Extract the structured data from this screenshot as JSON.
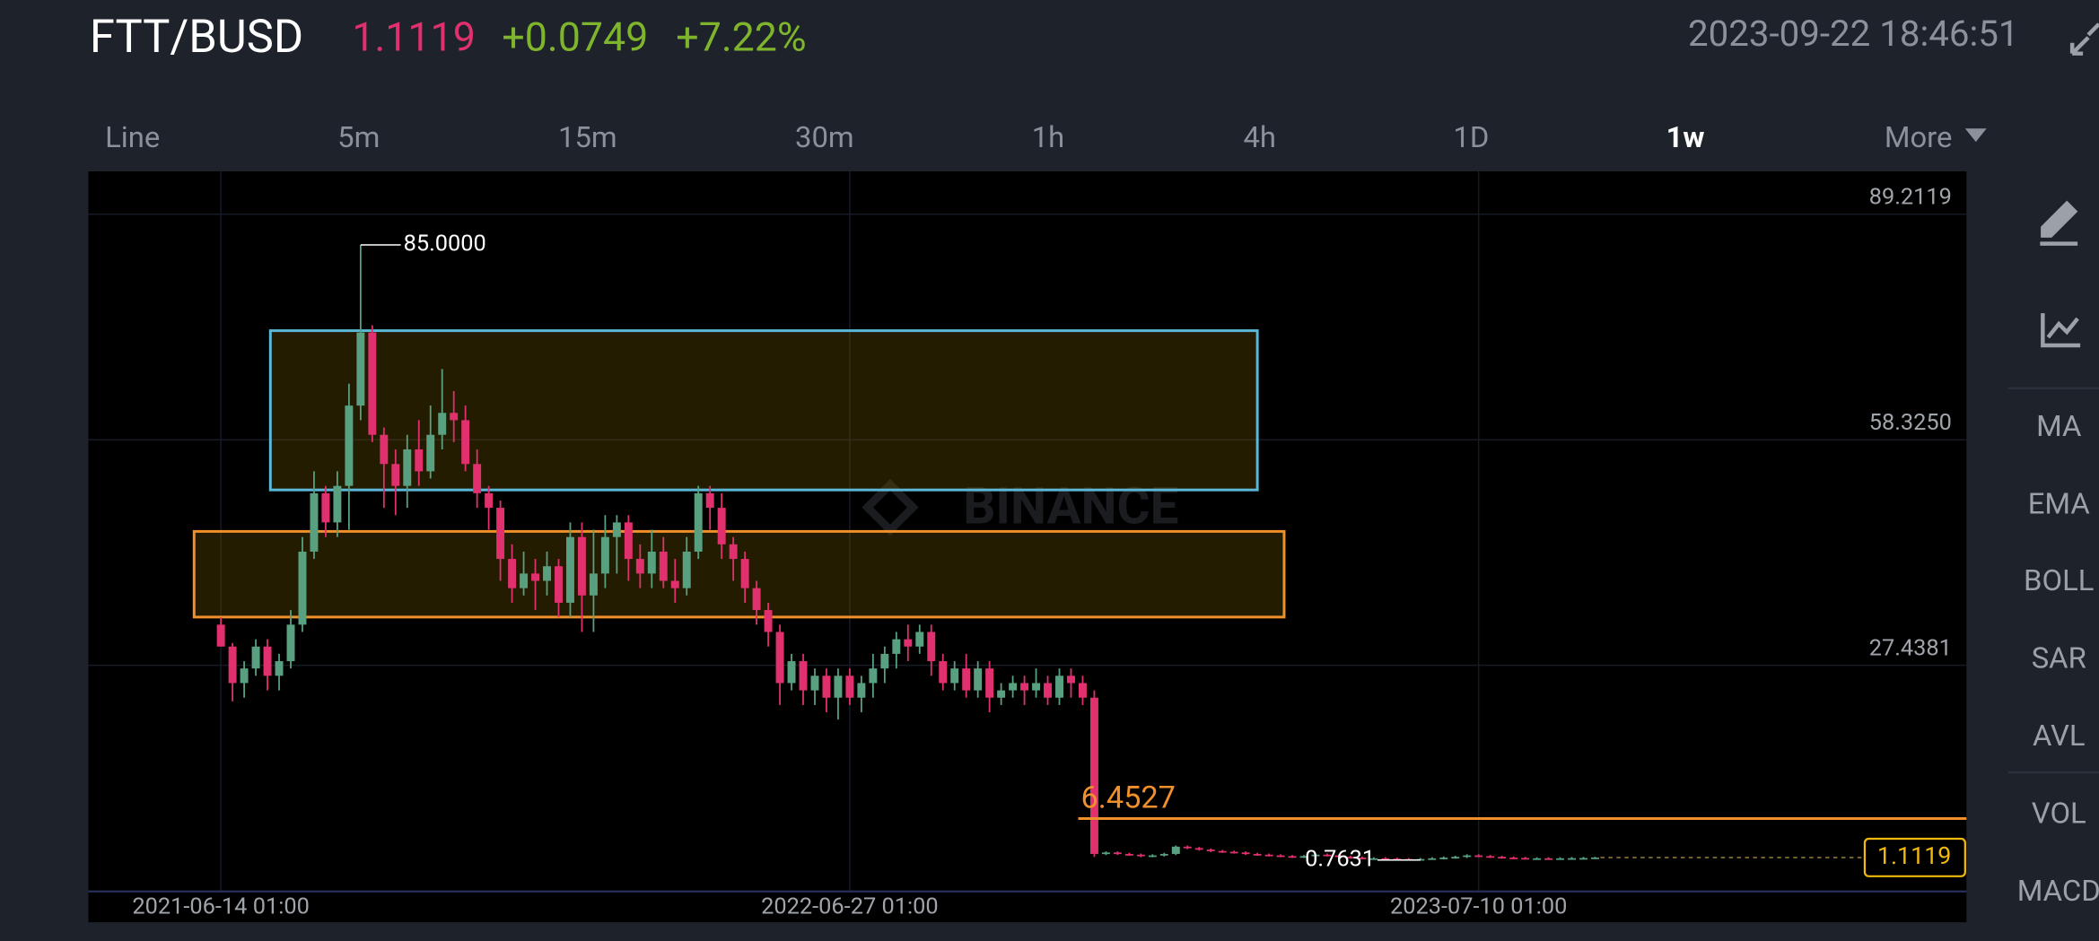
{
  "header": {
    "pair": "FTT/BUSD",
    "price": "1.1119",
    "change": "+0.0749",
    "change_pct": "+7.22%",
    "datetime": "2023-09-22 18:46:51"
  },
  "tabs": [
    "Line",
    "5m",
    "15m",
    "30m",
    "1h",
    "4h",
    "1D",
    "1w",
    "More"
  ],
  "active_tab": 7,
  "indicators": [
    "MA",
    "EMA",
    "BOLL",
    "SAR",
    "AVL",
    "VOL",
    "MACD"
  ],
  "chart_data": {
    "type": "candlestick",
    "watermark": "BINANCE",
    "up_color": "#58a080",
    "down_color": "#e0306e",
    "grid": true,
    "ylim": [
      -3.54,
      95.08
    ],
    "yticks": [
      89.2119,
      {
        "value": 58.325,
        "label": "58.3250"
      },
      27.4381
    ],
    "xlim": [
      -11.38,
      149.89
    ],
    "xticks": [
      {
        "value": 0,
        "label": "2021-06-14 01:00"
      },
      {
        "value": 54,
        "label": "2022-06-27 01:00"
      },
      {
        "value": 108,
        "label": "2023-07-10 01:00"
      }
    ],
    "candles": [
      [
        33,
        34,
        30,
        30
      ],
      [
        30,
        30.5,
        22.5,
        25
      ],
      [
        25,
        28,
        23,
        27
      ],
      [
        27,
        31,
        26,
        30
      ],
      [
        30,
        31,
        24,
        26
      ],
      [
        26,
        29,
        24,
        28
      ],
      [
        28,
        35,
        27,
        33
      ],
      [
        33,
        45,
        32,
        43
      ],
      [
        43,
        54,
        42,
        51
      ],
      [
        51,
        52,
        45,
        47
      ],
      [
        47,
        54,
        45,
        52
      ],
      [
        52,
        66,
        46,
        63
      ],
      [
        63,
        85,
        61,
        73
      ],
      [
        73,
        74,
        58,
        59
      ],
      [
        59,
        60,
        49,
        55
      ],
      [
        55,
        57,
        48,
        52
      ],
      [
        52,
        59,
        49,
        57
      ],
      [
        57,
        61,
        52,
        54
      ],
      [
        54,
        63,
        53,
        59
      ],
      [
        59,
        68,
        57,
        62
      ],
      [
        62,
        65,
        58,
        61
      ],
      [
        61,
        63,
        54,
        55
      ],
      [
        55,
        57,
        49,
        51
      ],
      [
        51,
        52,
        46,
        49
      ],
      [
        49,
        50,
        39,
        42
      ],
      [
        42,
        44,
        36,
        38
      ],
      [
        38,
        43,
        37,
        40
      ],
      [
        40,
        42,
        35,
        39
      ],
      [
        39,
        43,
        37,
        41
      ],
      [
        41,
        42,
        34,
        36
      ],
      [
        36,
        47,
        34,
        45
      ],
      [
        45,
        47,
        32,
        37
      ],
      [
        37,
        46,
        32,
        40
      ],
      [
        40,
        48,
        38,
        45
      ],
      [
        45,
        48,
        40,
        47
      ],
      [
        47,
        48,
        39,
        42
      ],
      [
        42,
        44,
        38,
        40
      ],
      [
        40,
        46,
        38,
        43
      ],
      [
        43,
        45,
        38,
        39
      ],
      [
        39,
        42,
        36,
        38
      ],
      [
        38,
        45,
        37,
        43
      ],
      [
        43,
        52,
        42,
        51
      ],
      [
        51,
        52,
        46,
        49
      ],
      [
        49,
        51,
        42,
        44
      ],
      [
        44,
        45,
        39,
        42
      ],
      [
        42,
        43,
        36,
        38
      ],
      [
        38,
        39,
        33,
        35
      ],
      [
        35,
        36,
        30,
        32
      ],
      [
        32,
        33,
        22,
        25
      ],
      [
        25,
        29,
        24,
        28
      ],
      [
        28,
        29,
        22,
        24
      ],
      [
        24,
        27,
        22,
        26
      ],
      [
        26,
        27,
        21,
        23
      ],
      [
        23,
        27,
        20,
        26
      ],
      [
        26,
        27,
        22,
        23
      ],
      [
        23,
        26,
        21,
        25
      ],
      [
        25,
        29,
        23,
        27
      ],
      [
        27,
        30,
        25,
        29
      ],
      [
        29,
        32,
        27,
        31
      ],
      [
        31,
        33,
        28,
        30
      ],
      [
        30,
        33,
        29,
        32
      ],
      [
        32,
        33,
        26,
        28
      ],
      [
        28,
        29,
        24,
        25
      ],
      [
        25,
        28,
        24,
        27
      ],
      [
        27,
        29,
        23,
        24
      ],
      [
        24,
        28,
        23,
        27
      ],
      [
        27,
        28,
        21,
        23
      ],
      [
        23,
        25,
        22,
        24
      ],
      [
        24,
        26,
        23,
        25
      ],
      [
        25,
        26,
        22,
        24
      ],
      [
        24,
        27,
        23,
        25
      ],
      [
        25,
        26,
        22,
        23
      ],
      [
        23,
        27,
        22,
        26
      ],
      [
        26,
        27,
        23,
        25
      ],
      [
        25,
        26,
        22,
        23
      ],
      [
        23,
        24,
        1.2,
        1.6
      ],
      [
        1.6,
        1.95,
        1.45,
        1.8
      ],
      [
        1.8,
        1.95,
        1.45,
        1.6
      ],
      [
        1.6,
        1.75,
        1.35,
        1.5
      ],
      [
        1.5,
        1.65,
        1.15,
        1.3
      ],
      [
        1.3,
        1.55,
        1.15,
        1.4
      ],
      [
        1.4,
        1.75,
        1.25,
        1.6
      ],
      [
        1.6,
        2.75,
        1.45,
        2.6
      ],
      [
        2.6,
        2.75,
        2.25,
        2.4
      ],
      [
        2.4,
        2.55,
        2.05,
        2.2
      ],
      [
        2.2,
        2.35,
        1.85,
        2
      ],
      [
        2,
        2.15,
        1.75,
        1.9
      ],
      [
        1.9,
        2.05,
        1.65,
        1.8
      ],
      [
        1.8,
        1.95,
        1.45,
        1.6
      ],
      [
        1.6,
        1.75,
        1.35,
        1.5
      ],
      [
        1.5,
        1.65,
        1.25,
        1.4
      ],
      [
        1.4,
        1.55,
        1.15,
        1.3
      ],
      [
        1.3,
        1.45,
        1.05,
        1.2
      ],
      [
        1.2,
        1.45,
        1.05,
        1.3
      ],
      [
        1.3,
        1.65,
        1.15,
        1.5
      ],
      [
        1.5,
        1.65,
        1.25,
        1.4
      ],
      [
        1.4,
        1.55,
        1.05,
        1.2
      ],
      [
        1.2,
        1.35,
        0.95,
        1.1
      ],
      [
        1.1,
        1.25,
        0.85,
        1
      ],
      [
        1,
        1.15,
        0.85,
        1
      ],
      [
        1,
        1.15,
        0.8,
        0.95
      ],
      [
        0.95,
        1.1,
        0.8,
        0.9
      ],
      [
        0.9,
        1.05,
        0.8,
        0.85
      ],
      [
        0.85,
        1.05,
        0.7631,
        0.9
      ],
      [
        0.9,
        1.15,
        0.8,
        1
      ],
      [
        1,
        1.25,
        0.85,
        1.1
      ],
      [
        1.1,
        1.35,
        0.95,
        1.2
      ],
      [
        1.2,
        1.55,
        1.05,
        1.4
      ],
      [
        1.4,
        1.55,
        1.15,
        1.3
      ],
      [
        1.3,
        1.45,
        1.05,
        1.2
      ],
      [
        1.2,
        1.35,
        0.95,
        1.1
      ],
      [
        1.1,
        1.25,
        0.9,
        1.05
      ],
      [
        1.05,
        1.2,
        0.85,
        1
      ],
      [
        1,
        1.15,
        0.85,
        1
      ],
      [
        1,
        1.15,
        0.83,
        0.98
      ],
      [
        0.98,
        1.15,
        0.83,
        1
      ],
      [
        1,
        1.17,
        0.85,
        1.02
      ],
      [
        1.02,
        1.19,
        0.87,
        1.04
      ],
      [
        1.04,
        1.2,
        0.9,
        1.1119
      ]
    ],
    "zones": [
      {
        "color": "#5bb8d8",
        "x_from": 4.25,
        "x_to": 89,
        "top": 73.26,
        "bottom": 51.45
      },
      {
        "color": "#f0902a",
        "x_from": -2.3,
        "x_to": 91.3,
        "top": 45.77,
        "bottom": 34.04
      }
    ],
    "max_label": {
      "value": 85,
      "label": "85.0000"
    },
    "min_label": {
      "value": 0.7631,
      "label": "0.7631"
    },
    "hline": {
      "value": 6.4527,
      "label": "6.4527",
      "color": "#f0902a"
    },
    "last_price": {
      "value": 1.1119,
      "label": "1.1119",
      "color": "#f0b90b"
    }
  }
}
